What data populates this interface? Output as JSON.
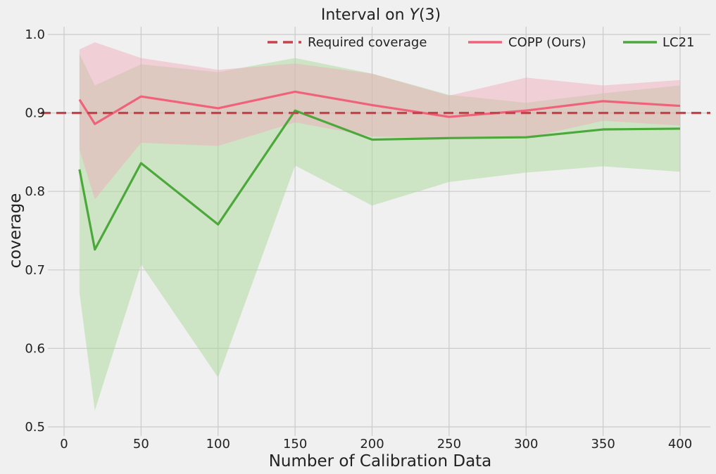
{
  "chart_data": {
    "type": "line",
    "title_prefix": "Interval on ",
    "title_var": "Y",
    "title_suffix": "(3)",
    "xlabel": "Number of Calibration Data",
    "ylabel": "coverage",
    "xlim": [
      -5,
      410
    ],
    "ylim": [
      0.495,
      1.01
    ],
    "xticks": [
      0,
      50,
      100,
      150,
      200,
      250,
      300,
      350,
      400
    ],
    "yticks": [
      0.5,
      0.6,
      0.7,
      0.8,
      0.9,
      1.0
    ],
    "ytick_labels": [
      "0.5",
      "0.6",
      "0.7",
      "0.8",
      "0.9",
      "1.0"
    ],
    "grid": true,
    "legend_position": "top-right",
    "reference_line": {
      "name": "Required coverage",
      "y": 0.9,
      "color": "#c8414b"
    },
    "series": [
      {
        "name": "COPP (Ours)",
        "color": "#f0627a",
        "band_color": "#f2a7b8",
        "x": [
          10,
          20,
          50,
          100,
          150,
          200,
          250,
          300,
          350,
          400
        ],
        "y": [
          0.917,
          0.886,
          0.921,
          0.906,
          0.927,
          0.91,
          0.895,
          0.903,
          0.915,
          0.909
        ],
        "lower": [
          0.853,
          0.79,
          0.862,
          0.858,
          0.888,
          0.87,
          0.868,
          0.868,
          0.89,
          0.884
        ],
        "upper": [
          0.981,
          0.99,
          0.97,
          0.955,
          0.963,
          0.95,
          0.922,
          0.945,
          0.935,
          0.942
        ]
      },
      {
        "name": "LC21",
        "color": "#4ca83a",
        "band_color": "#a9d99a",
        "x": [
          10,
          20,
          50,
          100,
          150,
          200,
          250,
          300,
          350,
          400
        ],
        "y": [
          0.828,
          0.726,
          0.836,
          0.758,
          0.903,
          0.866,
          0.868,
          0.869,
          0.879,
          0.88
        ],
        "lower": [
          0.671,
          0.521,
          0.707,
          0.563,
          0.833,
          0.782,
          0.812,
          0.824,
          0.832,
          0.825
        ],
        "upper": [
          0.975,
          0.935,
          0.962,
          0.952,
          0.97,
          0.95,
          0.923,
          0.913,
          0.925,
          0.935
        ]
      }
    ]
  }
}
